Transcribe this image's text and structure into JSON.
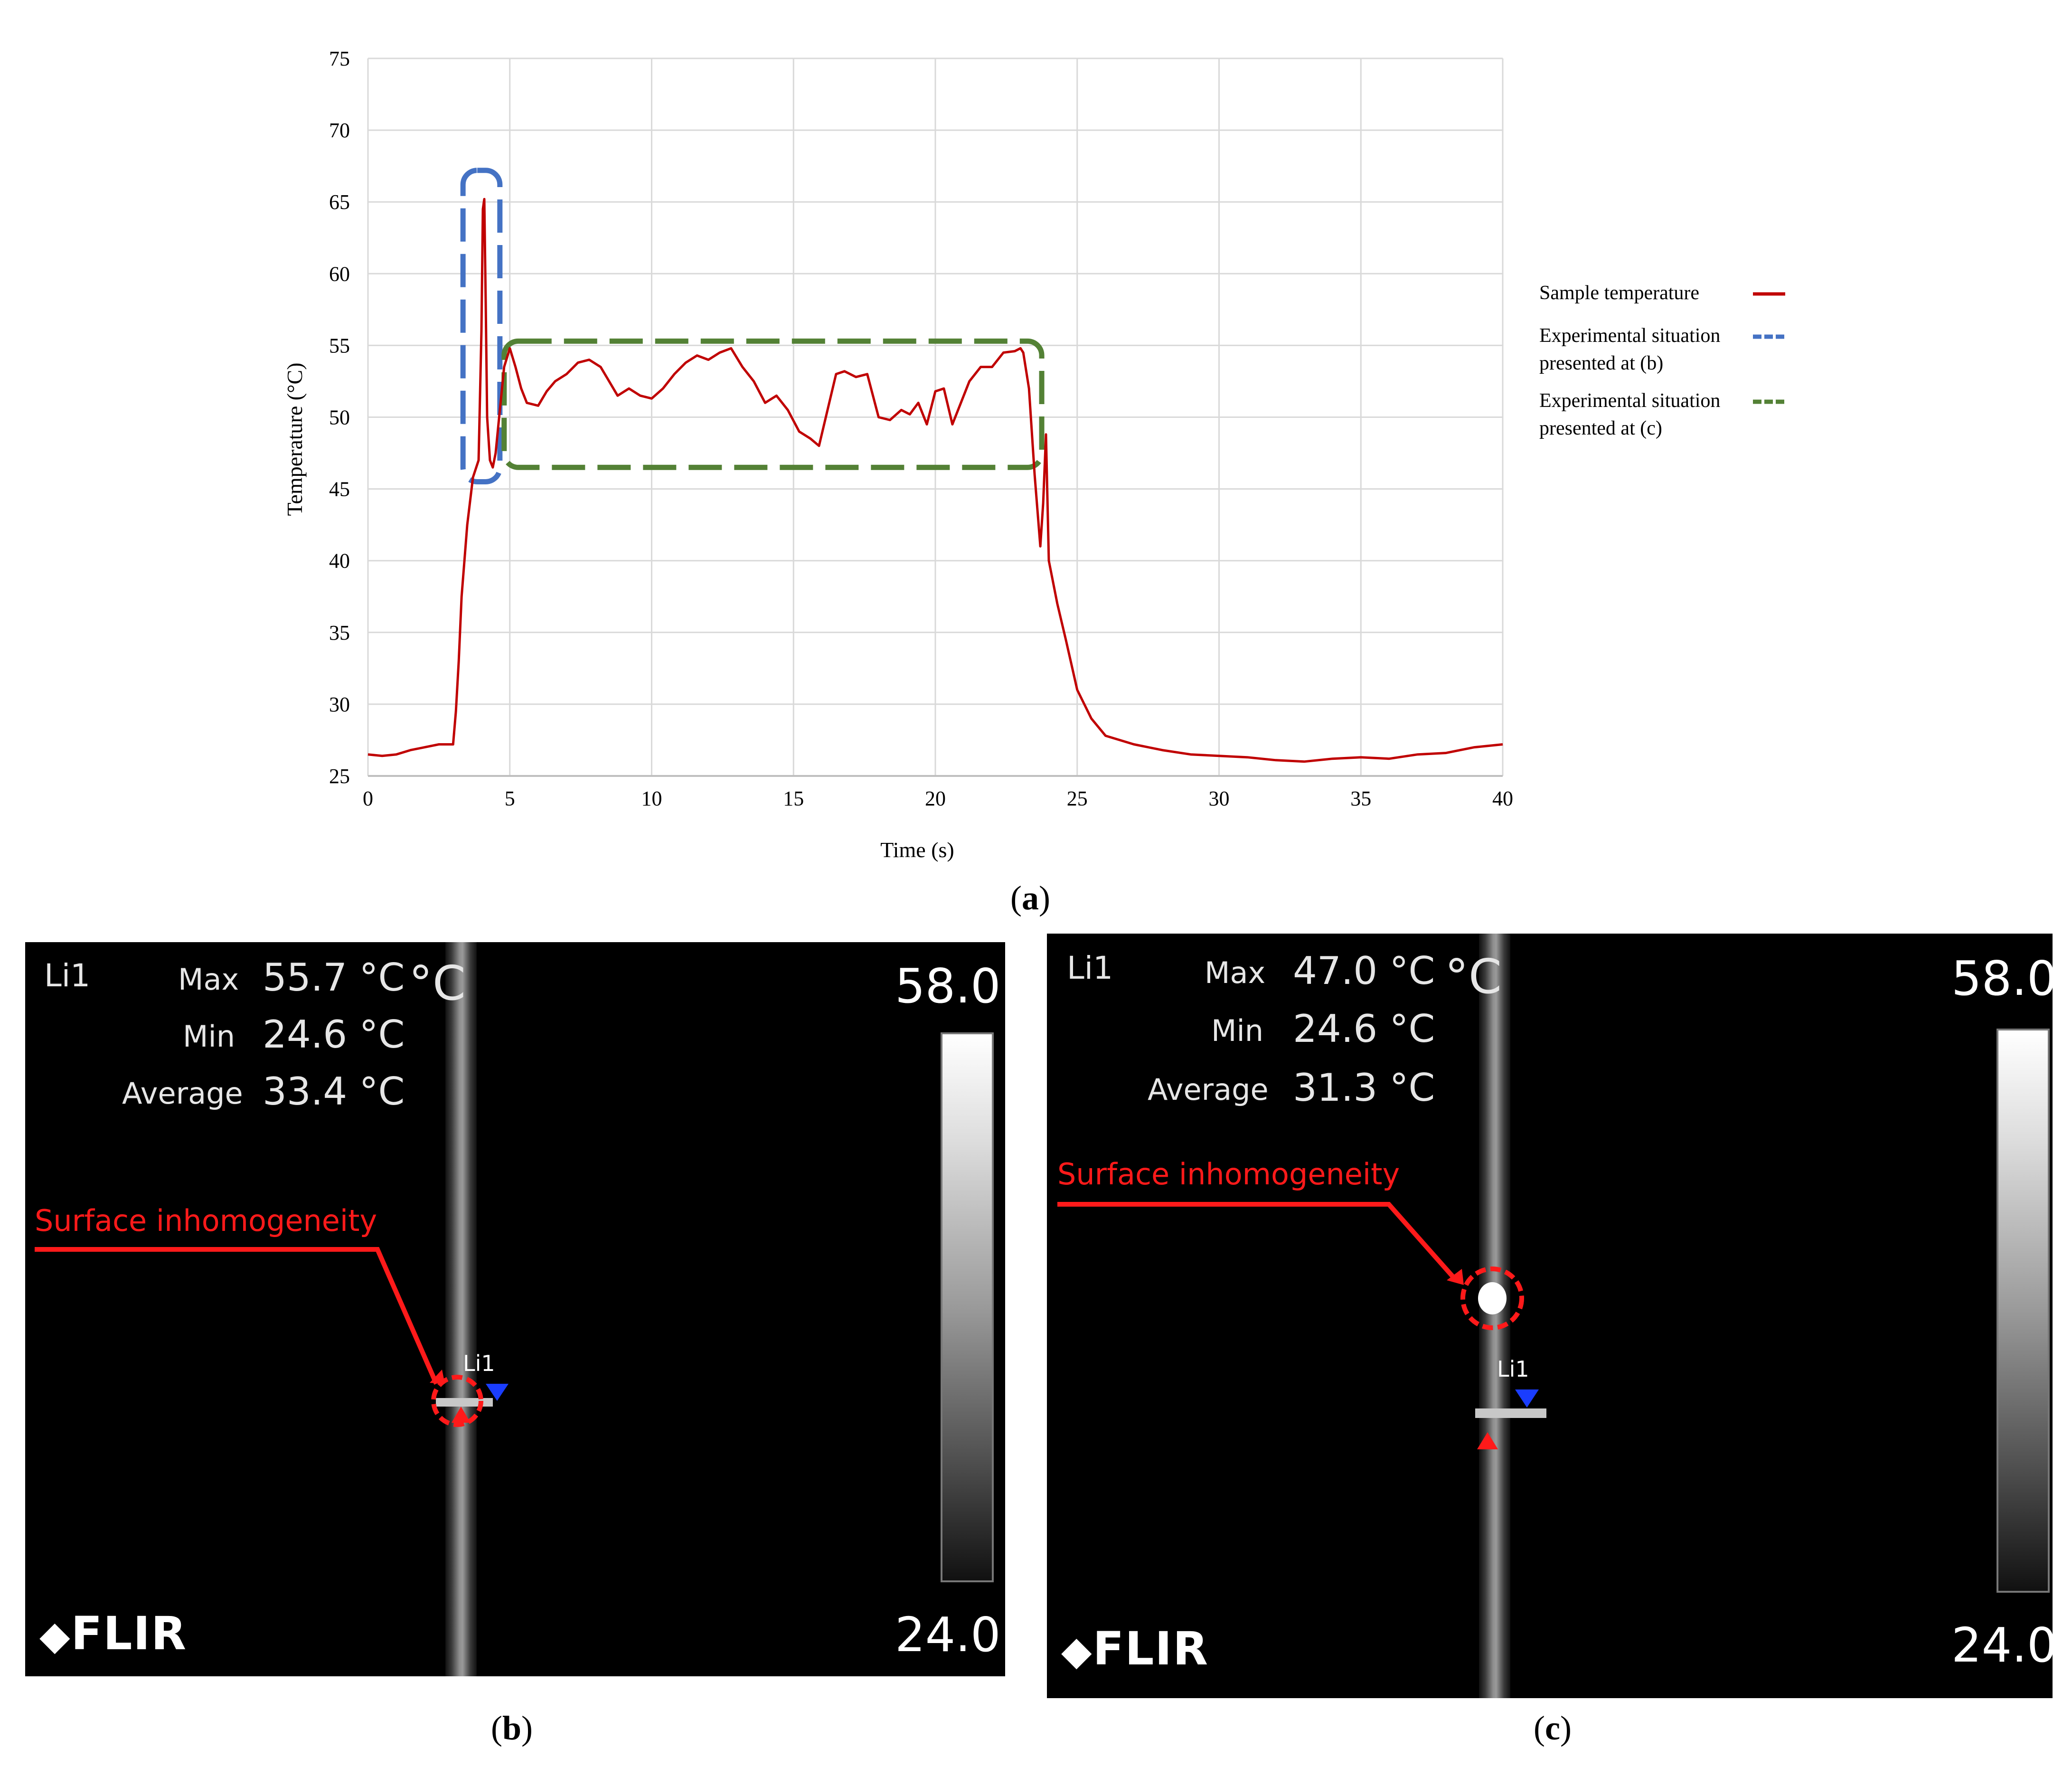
{
  "chart_data": {
    "type": "line",
    "xlabel": "Time (s)",
    "ylabel": "Temperature (°C)",
    "xlim": [
      0,
      40
    ],
    "ylim": [
      25,
      75
    ],
    "x_ticks": [
      0,
      5,
      10,
      15,
      20,
      25,
      30,
      35,
      40
    ],
    "y_ticks": [
      25,
      30,
      35,
      40,
      45,
      50,
      55,
      60,
      65,
      70,
      75
    ],
    "grid": true,
    "legend_position": "right",
    "series": [
      {
        "name": "Sample temperature",
        "color": "#c00000",
        "x": [
          0,
          0.5,
          1,
          1.5,
          2,
          2.5,
          3,
          3.1,
          3.2,
          3.3,
          3.5,
          3.7,
          3.9,
          4.0,
          4.05,
          4.1,
          4.15,
          4.2,
          4.3,
          4.4,
          4.5,
          4.6,
          4.8,
          5.0,
          5.2,
          5.4,
          5.6,
          6.0,
          6.3,
          6.6,
          7.0,
          7.4,
          7.8,
          8.2,
          8.5,
          8.8,
          9.2,
          9.6,
          10.0,
          10.4,
          10.8,
          11.2,
          11.6,
          12.0,
          12.4,
          12.8,
          13.2,
          13.6,
          14.0,
          14.4,
          14.8,
          15.2,
          15.6,
          15.9,
          16.2,
          16.5,
          16.8,
          17.2,
          17.6,
          18.0,
          18.4,
          18.8,
          19.1,
          19.4,
          19.7,
          20.0,
          20.3,
          20.6,
          20.9,
          21.2,
          21.6,
          22.0,
          22.4,
          22.8,
          23.0,
          23.1,
          23.3,
          23.5,
          23.6,
          23.7,
          23.8,
          23.9,
          24.0,
          24.3,
          24.6,
          25.0,
          25.5,
          26.0,
          27.0,
          28.0,
          29.0,
          30.0,
          31.0,
          32.0,
          33.0,
          34.0,
          35.0,
          36.0,
          37.0,
          38.0,
          39.0,
          40.0
        ],
        "y": [
          26.5,
          26.4,
          26.5,
          26.8,
          27.0,
          27.2,
          27.2,
          29.5,
          33.0,
          37.5,
          42.5,
          45.8,
          47.0,
          56.0,
          64.5,
          65.2,
          58.0,
          50.0,
          47.0,
          46.5,
          47.5,
          49.5,
          53.5,
          54.8,
          53.5,
          52.0,
          51.0,
          50.8,
          51.8,
          52.5,
          53.0,
          53.8,
          54.0,
          53.5,
          52.5,
          51.5,
          52.0,
          51.5,
          51.3,
          52.0,
          53.0,
          53.8,
          54.3,
          54.0,
          54.5,
          54.8,
          53.5,
          52.5,
          51.0,
          51.5,
          50.5,
          49.0,
          48.5,
          48.0,
          50.5,
          53.0,
          53.2,
          52.8,
          53.0,
          50.0,
          49.8,
          50.5,
          50.2,
          51.0,
          49.5,
          51.8,
          52.0,
          49.5,
          51.0,
          52.5,
          53.5,
          53.5,
          54.5,
          54.6,
          54.8,
          54.5,
          52.0,
          46.0,
          43.5,
          41.0,
          44.0,
          48.8,
          40.0,
          37.0,
          34.5,
          31.0,
          29.0,
          27.8,
          27.2,
          26.8,
          26.5,
          26.4,
          26.3,
          26.1,
          26.0,
          26.2,
          26.3,
          26.2,
          26.5,
          26.6,
          27.0,
          27.2
        ]
      }
    ],
    "legend": [
      {
        "label": "Sample temperature",
        "color": "#c00000",
        "style": "solid"
      },
      {
        "label_line1": "Experimental situation",
        "label_line2": "presented at (b)",
        "color": "#4472c4",
        "style": "dashed"
      },
      {
        "label_line1": "Experimental situation",
        "label_line2": "presented at (c)",
        "color": "#538135",
        "style": "dashed"
      }
    ],
    "highlight_boxes": [
      {
        "name": "blue-box",
        "color": "#4472c4",
        "x_range": [
          3.35,
          4.65
        ],
        "y_range": [
          45.5,
          67.2
        ]
      },
      {
        "name": "green-box",
        "color": "#538135",
        "x_range": [
          4.8,
          23.75
        ],
        "y_range": [
          46.5,
          55.3
        ]
      }
    ]
  },
  "panel_labels": {
    "a": "a",
    "b": "b",
    "c": "c"
  },
  "thermal_b": {
    "id": "Li1",
    "max_label": "Max",
    "max_value": "55.7 °C",
    "min_label": "Min",
    "min_value": "24.6 °C",
    "avg_label": "Average",
    "avg_value": "33.4 °C",
    "unit": "°C",
    "scale_max": "58.0",
    "scale_min": "24.0",
    "marker": "Li1",
    "annotation": "Surface inhomogeneity",
    "logo": "FLIR"
  },
  "thermal_c": {
    "id": "Li1",
    "max_label": "Max",
    "max_value": "47.0 °C",
    "min_label": "Min",
    "min_value": "24.6 °C",
    "avg_label": "Average",
    "avg_value": "31.3 °C",
    "unit": "°C",
    "scale_max": "58.0",
    "scale_min": "24.0",
    "marker": "Li1",
    "annotation": "Surface inhomogeneity",
    "logo": "FLIR"
  },
  "colors": {
    "red_annotation": "#ff1a1a",
    "axis_grid": "#d9d9d9"
  }
}
